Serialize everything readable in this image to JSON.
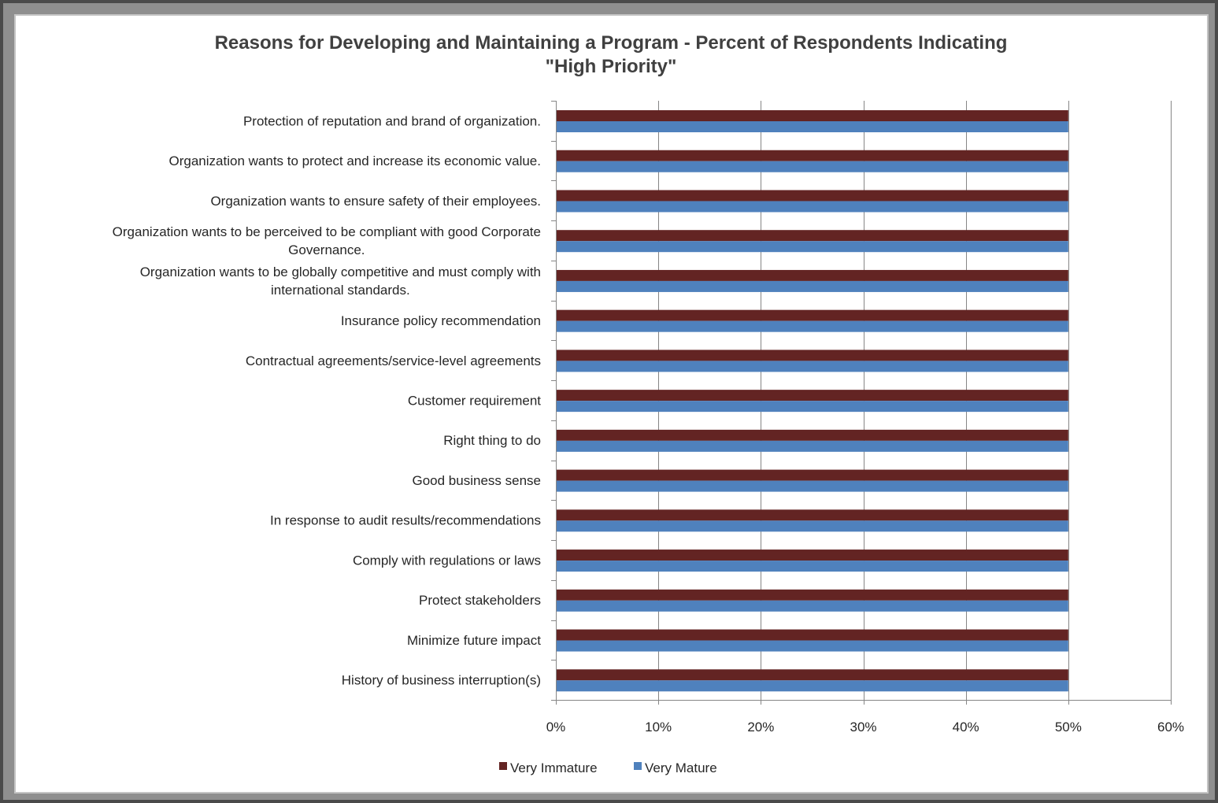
{
  "colors": {
    "very_immature": "#632423",
    "very_mature": "#4f81bd",
    "gridline": "#868686",
    "axis": "#868686",
    "text": "#262626"
  },
  "chart_data": {
    "type": "bar",
    "orientation": "horizontal",
    "title_lines": [
      "Reasons for Developing and Maintaining  a Program - Percent of Respondents Indicating",
      "\"High Priority\""
    ],
    "categories": [
      [
        "Protection of reputation and brand of organization."
      ],
      [
        "Organization wants to protect and increase its economic value."
      ],
      [
        "Organization wants to ensure safety of their employees."
      ],
      [
        "Organization wants to be perceived to be compliant with good Corporate",
        "Governance."
      ],
      [
        "Organization wants to be globally competitive and must comply with",
        "international standards."
      ],
      [
        "Insurance policy recommendation"
      ],
      [
        "Contractual agreements/service-level agreements"
      ],
      [
        "Customer requirement"
      ],
      [
        "Right thing to do"
      ],
      [
        "Good business sense"
      ],
      [
        "In response to audit results/recommendations"
      ],
      [
        "Comply with regulations or laws"
      ],
      [
        "Protect stakeholders"
      ],
      [
        "Minimize future impact"
      ],
      [
        "History of business interruption(s)"
      ]
    ],
    "series": [
      {
        "name": "Very Immature",
        "color": "#632423",
        "values": [
          50,
          50,
          50,
          50,
          50,
          50,
          50,
          50,
          50,
          50,
          50,
          50,
          50,
          50,
          50
        ]
      },
      {
        "name": "Very Mature",
        "color": "#4f81bd",
        "values": [
          50,
          50,
          50,
          50,
          50,
          50,
          50,
          50,
          50,
          50,
          50,
          50,
          50,
          50,
          50
        ]
      }
    ],
    "xlim": [
      0,
      60
    ],
    "xticks": [
      "0%",
      "10%",
      "20%",
      "30%",
      "40%",
      "50%",
      "60%"
    ],
    "xtick_values": [
      0,
      10,
      20,
      30,
      40,
      50,
      60
    ],
    "grid": "vertical major gridlines",
    "legend_position": "bottom"
  }
}
